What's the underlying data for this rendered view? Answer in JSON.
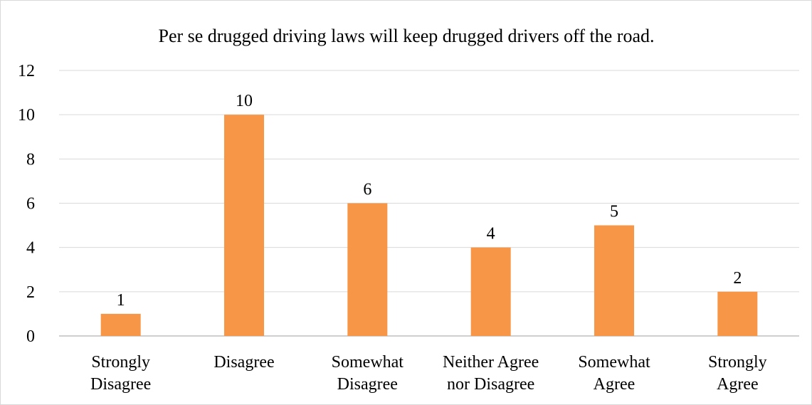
{
  "chart_data": {
    "type": "bar",
    "title": "Per se drugged driving laws will keep drugged drivers off the road.",
    "xlabel": "",
    "ylabel": "",
    "categories": [
      [
        "Strongly",
        "Disagree"
      ],
      [
        "Disagree"
      ],
      [
        "Somewhat",
        "Disagree"
      ],
      [
        "Neither Agree",
        "nor Disagree"
      ],
      [
        "Somewhat",
        "Agree"
      ],
      [
        "Strongly",
        "Agree"
      ]
    ],
    "values": [
      1,
      10,
      6,
      4,
      5,
      2
    ],
    "data_labels": [
      "1",
      "10",
      "6",
      "4",
      "5",
      "2"
    ],
    "ylim": [
      0,
      12
    ],
    "yticks": [
      0,
      2,
      4,
      6,
      8,
      10,
      12
    ],
    "ytick_labels": [
      "0",
      "2",
      "4",
      "6",
      "8",
      "10",
      "12"
    ],
    "grid": true,
    "legend": "none",
    "bar_color": "#f79646",
    "grid_color": "#d9d9d9",
    "axis_color": "#bfbfbf"
  }
}
